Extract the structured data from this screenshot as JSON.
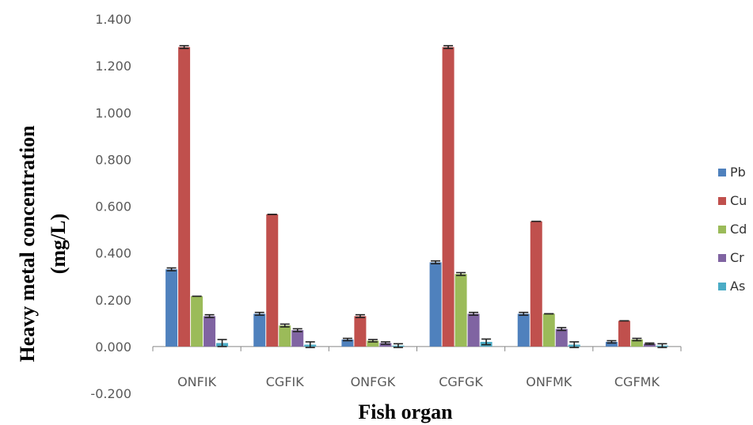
{
  "chart_data": {
    "type": "bar",
    "xlabel": "Fish organ",
    "ylabel_lines": [
      "Heavy metal concentration",
      "(mg/L)"
    ],
    "ylim": [
      -0.2,
      1.4
    ],
    "yticks": [
      "-0.200",
      "0.000",
      "0.200",
      "0.400",
      "0.600",
      "0.800",
      "1.000",
      "1.200",
      "1.400"
    ],
    "grid": false,
    "legend_position": "right",
    "categories": [
      "ONFIK",
      "CGFIK",
      "ONFGK",
      "CGFGK",
      "ONFMK",
      "CGFMK"
    ],
    "series": [
      {
        "name": "Pb",
        "color": "#4F81BD",
        "values": [
          0.33,
          0.14,
          0.03,
          0.36,
          0.14,
          0.02
        ],
        "errors": [
          0.006,
          0.006,
          0.005,
          0.006,
          0.006,
          0.005
        ]
      },
      {
        "name": "Cu",
        "color": "#C0504D",
        "values": [
          1.28,
          0.565,
          0.13,
          1.28,
          0.535,
          0.11
        ],
        "errors": [
          0.006,
          0.0,
          0.006,
          0.006,
          0.0,
          0.0
        ]
      },
      {
        "name": "Cd",
        "color": "#9BBB59",
        "values": [
          0.215,
          0.09,
          0.025,
          0.31,
          0.14,
          0.03
        ],
        "errors": [
          0.0,
          0.006,
          0.005,
          0.006,
          0.0,
          0.005
        ]
      },
      {
        "name": "Cr",
        "color": "#8064A2",
        "values": [
          0.13,
          0.07,
          0.015,
          0.14,
          0.075,
          0.012
        ],
        "errors": [
          0.006,
          0.006,
          0.005,
          0.006,
          0.006,
          0.003
        ]
      },
      {
        "name": "As",
        "color": "#4BACC6",
        "values": [
          0.015,
          0.008,
          0.004,
          0.02,
          0.008,
          0.004
        ],
        "errors": [
          0.015,
          0.012,
          0.008,
          0.012,
          0.012,
          0.008
        ]
      }
    ]
  }
}
